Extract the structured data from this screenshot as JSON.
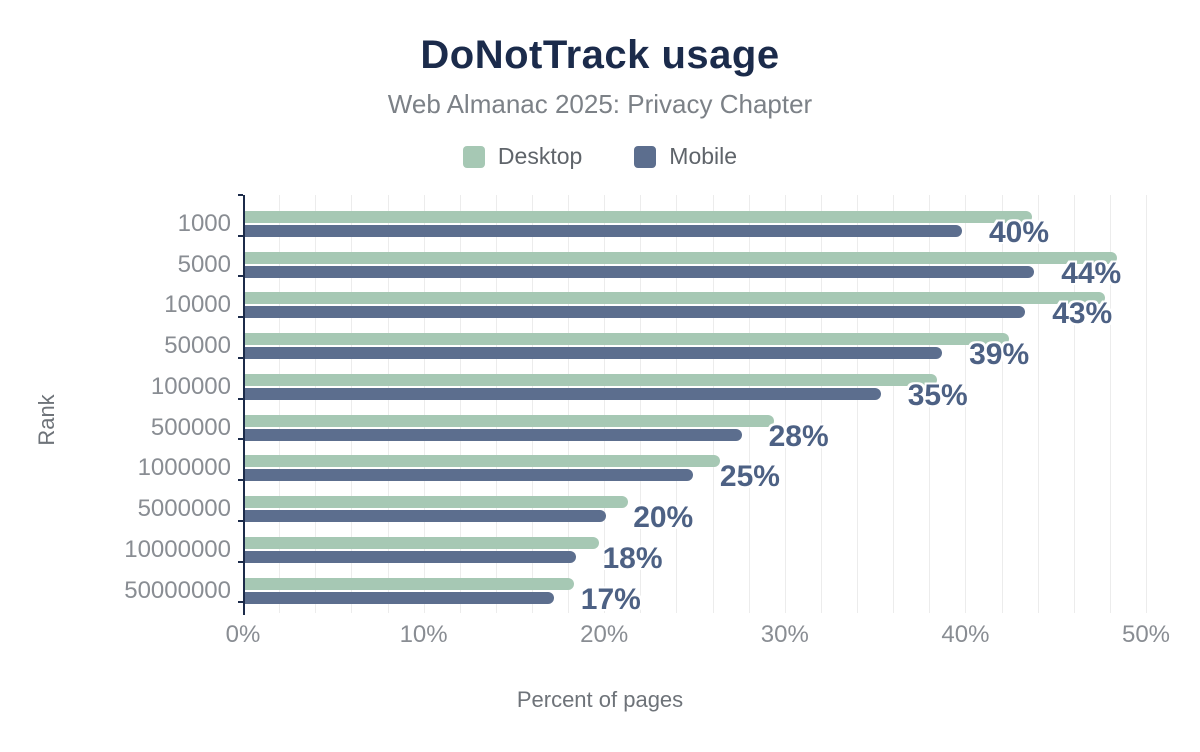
{
  "title": "DoNotTrack usage",
  "subtitle": "Web Almanac 2025: Privacy Chapter",
  "legend": {
    "items": [
      {
        "label": "Desktop",
        "color": "#a6c8b4"
      },
      {
        "label": "Mobile",
        "color": "#5c6e8e"
      }
    ]
  },
  "chart_data": {
    "type": "bar",
    "orientation": "horizontal",
    "title": "DoNotTrack usage",
    "subtitle": "Web Almanac 2025: Privacy Chapter",
    "xlabel": "Percent of pages",
    "ylabel": "Rank",
    "xlim": [
      0,
      50
    ],
    "x_tick_values": [
      0,
      10,
      20,
      30,
      40,
      50
    ],
    "x_tick_labels": [
      "0%",
      "10%",
      "20%",
      "30%",
      "40%",
      "50%"
    ],
    "grid": true,
    "grid_step": 2,
    "legend_position": "top",
    "categories": [
      "1000",
      "5000",
      "10000",
      "50000",
      "100000",
      "500000",
      "1000000",
      "5000000",
      "10000000",
      "50000000"
    ],
    "series": [
      {
        "name": "Desktop",
        "color": "#a6c8b4",
        "values": [
          43.6,
          48.3,
          47.6,
          42.3,
          38.3,
          29.3,
          26.3,
          21.2,
          19.6,
          18.2
        ]
      },
      {
        "name": "Mobile",
        "color": "#5c6e8e",
        "values": [
          39.7,
          43.7,
          43.2,
          38.6,
          35.2,
          27.5,
          24.8,
          20.0,
          18.3,
          17.1
        ]
      }
    ],
    "bar_labels": {
      "series": "Mobile",
      "values": [
        "40%",
        "44%",
        "43%",
        "39%",
        "35%",
        "28%",
        "25%",
        "20%",
        "18%",
        "17%"
      ]
    }
  },
  "colors": {
    "background": "#ffffff",
    "title": "#1b2b4b",
    "subtitle": "#7c8187",
    "legend_text": "#5f646a",
    "axis_line": "#1c2b4a",
    "grid_line": "#ececec",
    "tick_label": "#898d93",
    "data_label": "#4d6184",
    "axis_title": "#6e7379"
  }
}
